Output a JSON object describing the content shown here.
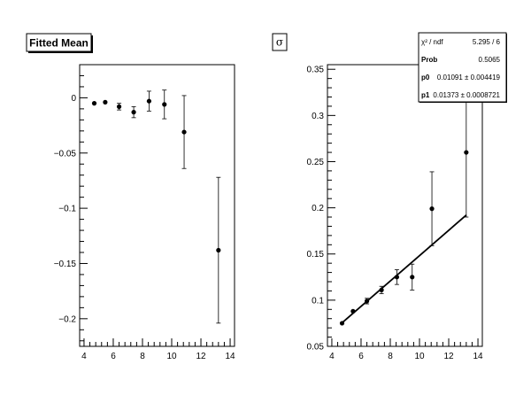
{
  "chart_data": [
    {
      "type": "scatter",
      "title": "Fitted Mean",
      "xlim": [
        3.7,
        14.3
      ],
      "ylim": [
        -0.225,
        0.03
      ],
      "xticks": [
        4,
        6,
        8,
        10,
        12,
        14
      ],
      "xtick_labels": [
        "4",
        "6",
        "8",
        "10",
        "12",
        "14"
      ],
      "yticks": [
        0,
        -0.05,
        -0.1,
        -0.15,
        -0.2
      ],
      "ytick_labels": [
        "0",
        "−0.05",
        "−0.1",
        "−0.15",
        "−0.2"
      ],
      "points": [
        {
          "x": 4.7,
          "y": -0.005,
          "err": 0.0
        },
        {
          "x": 5.45,
          "y": -0.004,
          "err": 0.0
        },
        {
          "x": 6.4,
          "y": -0.008,
          "err": 0.003
        },
        {
          "x": 7.4,
          "y": -0.013,
          "err": 0.005
        },
        {
          "x": 8.45,
          "y": -0.003,
          "err": 0.009
        },
        {
          "x": 9.5,
          "y": -0.006,
          "err": 0.013
        },
        {
          "x": 10.85,
          "y": -0.031,
          "err": 0.033
        },
        {
          "x": 13.2,
          "y": -0.138,
          "err": 0.066
        }
      ]
    },
    {
      "type": "scatter",
      "title": "σ",
      "xlim": [
        3.7,
        14.3
      ],
      "ylim": [
        0.05,
        0.355
      ],
      "xticks": [
        4,
        6,
        8,
        10,
        12,
        14
      ],
      "xtick_labels": [
        "4",
        "6",
        "8",
        "10",
        "12",
        "14"
      ],
      "yticks": [
        0.05,
        0.1,
        0.15,
        0.2,
        0.25,
        0.3,
        0.35
      ],
      "ytick_labels": [
        "0.05",
        "0.1",
        "0.15",
        "0.2",
        "0.25",
        "0.3",
        "0.35"
      ],
      "points": [
        {
          "x": 4.7,
          "y": 0.075,
          "err": 0.0
        },
        {
          "x": 5.45,
          "y": 0.088,
          "err": 0.0
        },
        {
          "x": 6.4,
          "y": 0.099,
          "err": 0.003
        },
        {
          "x": 7.4,
          "y": 0.111,
          "err": 0.004
        },
        {
          "x": 8.45,
          "y": 0.125,
          "err": 0.008
        },
        {
          "x": 9.5,
          "y": 0.125,
          "err": 0.014
        },
        {
          "x": 10.85,
          "y": 0.199,
          "err": 0.04
        },
        {
          "x": 13.2,
          "y": 0.26,
          "err": 0.07
        }
      ],
      "fit": {
        "p0": 0.01091,
        "p1": 0.01373,
        "x_range": [
          4.7,
          13.2
        ]
      },
      "stats": [
        {
          "label": "χ² / ndf",
          "value": "5.295 / 6"
        },
        {
          "label": "Prob",
          "value": "0.5065"
        },
        {
          "label": "p0",
          "value": "0.01091 ± 0.004419"
        },
        {
          "label": "p1",
          "value": "0.01373 ± 0.0008721"
        }
      ]
    }
  ]
}
